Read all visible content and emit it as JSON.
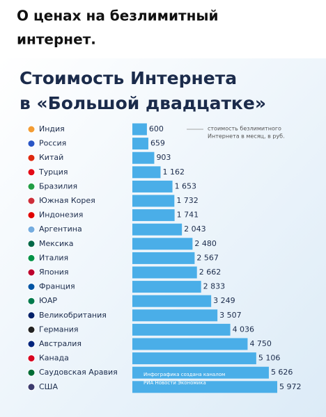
{
  "post_title_lines": [
    "О ценах на безлимитный",
    "интернет."
  ],
  "chart_data": {
    "type": "bar",
    "title_lines": [
      "Стоимость Интернета",
      "в «Большой двадцатке»"
    ],
    "annotation_lines": [
      "стоимость безлимитного",
      "Интернета в месяц, в руб."
    ],
    "credit_lines": [
      "Инфографика создана каналом",
      "РИА Новости Экономика"
    ],
    "categories": [
      "Индия",
      "Россия",
      "Китай",
      "Турция",
      "Бразилия",
      "Южная Корея",
      "Индонезия",
      "Аргентина",
      "Мексика",
      "Италия",
      "Япония",
      "Франция",
      "ЮАР",
      "Великобритания",
      "Германия",
      "Австралия",
      "Канада",
      "Саудовская Аравия",
      "США"
    ],
    "values": [
      600,
      659,
      903,
      1162,
      1653,
      1732,
      1741,
      2043,
      2480,
      2567,
      2662,
      2833,
      3249,
      3507,
      4036,
      4750,
      5106,
      5626,
      5972
    ],
    "value_labels": [
      "600",
      "659",
      "903",
      "1 162",
      "1 653",
      "1 732",
      "1 741",
      "2 043",
      "2 480",
      "2 567",
      "2 662",
      "2 833",
      "3 249",
      "3 507",
      "4 036",
      "4 750",
      "5 106",
      "5 626",
      "5 972"
    ],
    "color": "#4aaee8"
  }
}
